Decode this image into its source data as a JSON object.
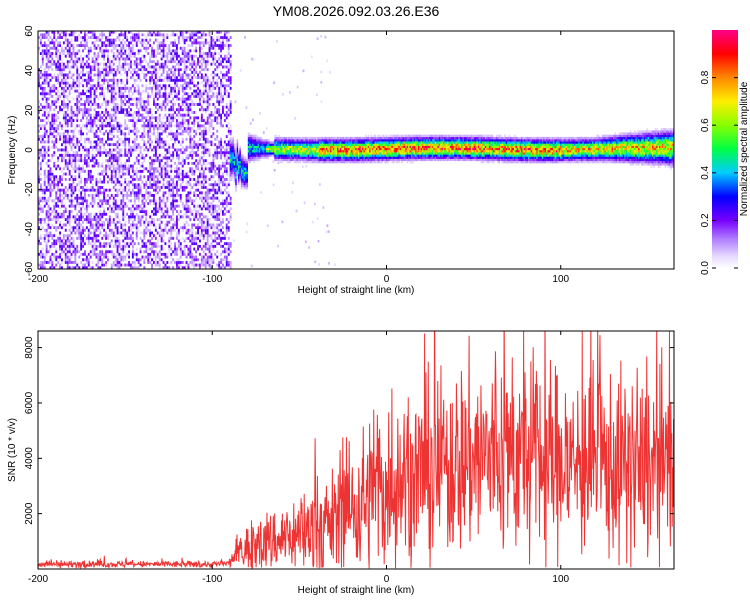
{
  "title": "YM08.2026.092.03.26.E36",
  "chart_data": [
    {
      "type": "heatmap",
      "xlabel": "Height of straight line (km)",
      "ylabel": "Frequency (Hz)",
      "xlim": [
        -200,
        165
      ],
      "ylim": [
        -60,
        60
      ],
      "xticks": [
        -200,
        -100,
        0,
        100
      ],
      "yticks": [
        60,
        40,
        20,
        0,
        -20,
        -40,
        -60
      ],
      "noise_region_x": [
        -200,
        -90
      ],
      "signal_center_freq": 0,
      "colorbar": {
        "label": "Normalized spectral amplitude",
        "range": [
          0,
          1
        ],
        "ticks": [
          0.0,
          0.2,
          0.4,
          0.6,
          0.8
        ],
        "colors": [
          "#ffffff",
          "#e6d8ff",
          "#7700ff",
          "#0000ff",
          "#00ccff",
          "#00ff44",
          "#ccff00",
          "#ff8800",
          "#ff0000",
          "#ff0088"
        ]
      }
    },
    {
      "type": "line",
      "xlabel": "Height of straight line (km)",
      "ylabel": "SNR (10 * v/v)",
      "xlim": [
        -200,
        165
      ],
      "ylim": [
        0,
        8600
      ],
      "xticks": [
        -200,
        -100,
        0,
        100
      ],
      "yticks": [
        2000,
        4000,
        6000,
        8000
      ],
      "color": "#ee3333",
      "series": [
        {
          "name": "SNR",
          "x": [
            -200,
            -150,
            -100,
            -90,
            -85,
            -75,
            -60,
            -50,
            -40,
            -30,
            -20,
            -10,
            0,
            10,
            20,
            30,
            40,
            50,
            60,
            70,
            80,
            90,
            100,
            110,
            120,
            130,
            140,
            150,
            160,
            165
          ],
          "values": [
            170,
            170,
            170,
            200,
            600,
            900,
            1100,
            1300,
            1500,
            1700,
            2100,
            2600,
            2900,
            3300,
            3500,
            3700,
            3900,
            4000,
            4100,
            4100,
            4000,
            4000,
            3800,
            3900,
            3800,
            3700,
            3700,
            3700,
            3600,
            3500
          ]
        }
      ]
    }
  ]
}
